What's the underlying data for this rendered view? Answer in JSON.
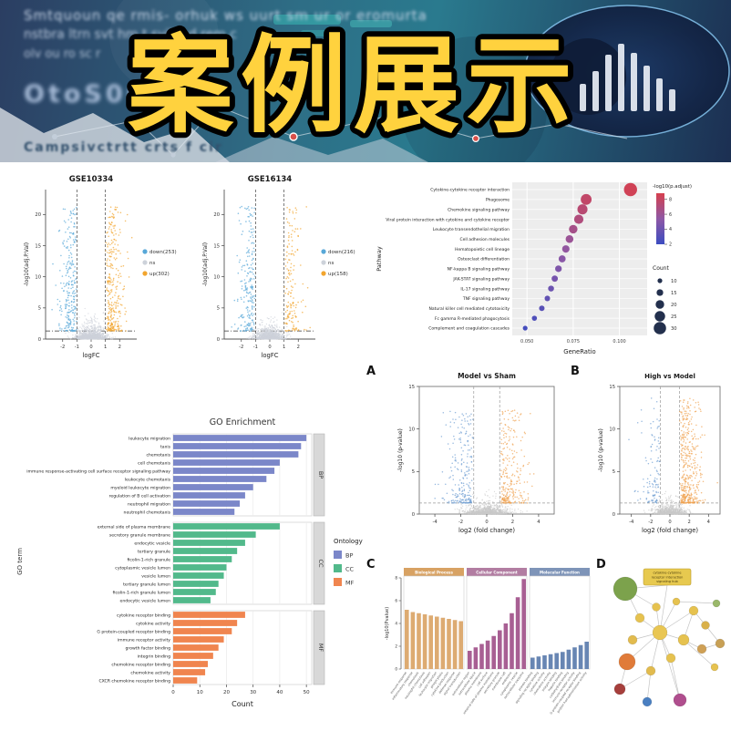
{
  "banner": {
    "title": "案例展示",
    "blur_lines": [
      "Smtquoun qe rmis- orhuk ws uurt sm ur or eromurta",
      "nstbra ltrn svt hm t svil o d rem c",
      "olv ou ro sc r"
    ],
    "big_blur_text": "OtoS06C",
    "bottom_blur_text": "Campsivctrtt crts f cir",
    "colors": {
      "title_fill": "#ffd23e",
      "title_stroke": "#000000"
    }
  },
  "panel_labels": {
    "a": "A",
    "b": "B",
    "c": "C",
    "d": "D"
  },
  "chart_data": [
    {
      "id": "gse10334",
      "type": "scatter",
      "subtype": "volcano",
      "title": "GSE10334",
      "xlabel": "logFC",
      "ylabel": "-log10(adj.P.Val)",
      "xlim": [
        -3.2,
        3.2
      ],
      "ylim": [
        0,
        24
      ],
      "xticks": [
        -2,
        -1,
        0,
        1,
        2
      ],
      "yticks": [
        0,
        5,
        10,
        15,
        20
      ],
      "fc_threshold": 1,
      "p_threshold": 1.3,
      "colors": {
        "down": "#58a8d8",
        "ns": "#cdd2da",
        "up": "#f2a52e"
      },
      "legend": [
        {
          "label": "down(253)",
          "color": "#58a8d8",
          "n": 253
        },
        {
          "label": "ns",
          "color": "#cdd2da"
        },
        {
          "label": "up(302)",
          "color": "#f2a52e",
          "n": 302
        }
      ]
    },
    {
      "id": "gse16134",
      "type": "scatter",
      "subtype": "volcano",
      "title": "GSE16134",
      "xlabel": "logFC",
      "ylabel": "-log10(adj.P.Val)",
      "xlim": [
        -3.2,
        3.2
      ],
      "ylim": [
        0,
        24
      ],
      "xticks": [
        -2,
        -1,
        0,
        1,
        2
      ],
      "yticks": [
        0,
        5,
        10,
        15,
        20
      ],
      "fc_threshold": 1,
      "p_threshold": 1.3,
      "colors": {
        "down": "#58a8d8",
        "ns": "#cdd2da",
        "up": "#f2a52e"
      },
      "legend": [
        {
          "label": "down(216)",
          "color": "#58a8d8",
          "n": 216
        },
        {
          "label": "ns",
          "color": "#cdd2da"
        },
        {
          "label": "up(158)",
          "color": "#f2a52e",
          "n": 158
        }
      ]
    },
    {
      "id": "kegg-dotplot",
      "type": "scatter",
      "subtype": "dotplot",
      "axis_title_y": "Pathway",
      "xlabel": "GeneRatio",
      "xlim": [
        0.042,
        0.115
      ],
      "xticks": [
        "0.050",
        "0.075",
        "0.100"
      ],
      "rows": [
        {
          "pathway": "Cytokine-cytokine receptor interaction",
          "gene_ratio": 0.106,
          "count": 32,
          "neg_log10_p": 8.5
        },
        {
          "pathway": "Phagosome",
          "gene_ratio": 0.082,
          "count": 26,
          "neg_log10_p": 7.8
        },
        {
          "pathway": "Chemokine signaling pathway",
          "gene_ratio": 0.08,
          "count": 24,
          "neg_log10_p": 7.4
        },
        {
          "pathway": "Viral protein interaction with cytokine and cytokine receptor",
          "gene_ratio": 0.078,
          "count": 22,
          "neg_log10_p": 7.0
        },
        {
          "pathway": "Leukocyte transendothelial migration",
          "gene_ratio": 0.075,
          "count": 20,
          "neg_log10_p": 6.5
        },
        {
          "pathway": "Cell adhesion molecules",
          "gene_ratio": 0.073,
          "count": 18,
          "neg_log10_p": 6.0
        },
        {
          "pathway": "Hematopoietic cell lineage",
          "gene_ratio": 0.071,
          "count": 17,
          "neg_log10_p": 5.6
        },
        {
          "pathway": "Osteoclast differentiation",
          "gene_ratio": 0.069,
          "count": 16,
          "neg_log10_p": 5.2
        },
        {
          "pathway": "NF-kappa B signaling pathway",
          "gene_ratio": 0.067,
          "count": 15,
          "neg_log10_p": 4.8
        },
        {
          "pathway": "JAK-STAT signaling pathway",
          "gene_ratio": 0.065,
          "count": 14,
          "neg_log10_p": 4.4
        },
        {
          "pathway": "IL-17 signaling pathway",
          "gene_ratio": 0.063,
          "count": 13,
          "neg_log10_p": 4.0
        },
        {
          "pathway": "TNF signaling pathway",
          "gene_ratio": 0.061,
          "count": 12,
          "neg_log10_p": 3.6
        },
        {
          "pathway": "Natural killer cell mediated cytotoxicity",
          "gene_ratio": 0.058,
          "count": 12,
          "neg_log10_p": 3.2
        },
        {
          "pathway": "Fc gamma R-mediated phagocytosis",
          "gene_ratio": 0.054,
          "count": 11,
          "neg_log10_p": 2.8
        },
        {
          "pathway": "Complement and coagulation cascades",
          "gene_ratio": 0.049,
          "count": 10,
          "neg_log10_p": 2.4
        }
      ],
      "color_legend": {
        "title": "-log10(p.adjust)",
        "ticks": [
          8,
          6,
          4,
          2
        ],
        "min": 2,
        "max": 8.8,
        "low_color": "#3b4cc0",
        "high_color": "#d6404e"
      },
      "size_legend": {
        "title": "Count",
        "values": [
          10,
          15,
          20,
          25,
          30
        ]
      }
    },
    {
      "id": "volcano-model-sham",
      "type": "scatter",
      "subtype": "volcano",
      "panel": "A",
      "title": "Model vs Sham",
      "xlabel": "log2 (fold change)",
      "ylabel": "-log10 (p-value)",
      "xlim": [
        -5.2,
        5.2
      ],
      "ylim": [
        0,
        15
      ],
      "xticks": [
        -4,
        -2,
        0,
        2,
        4
      ],
      "yticks": [
        0,
        5,
        10,
        15
      ],
      "fc_threshold": 1,
      "p_threshold": 1.3,
      "colors": {
        "down": "#6b9bd2",
        "ns": "#c9c9c9",
        "up": "#f0a04b"
      },
      "counts": {
        "down": 230,
        "ns": 1100,
        "up": 260
      }
    },
    {
      "id": "volcano-high-model",
      "type": "scatter",
      "subtype": "volcano",
      "panel": "B",
      "title": "High vs Model",
      "xlabel": "log2 (fold change)",
      "ylabel": "-log10 (p-value)",
      "xlim": [
        -5.2,
        5.2
      ],
      "ylim": [
        0,
        15
      ],
      "xticks": [
        -4,
        -2,
        0,
        2,
        4
      ],
      "yticks": [
        0,
        5,
        10,
        15
      ],
      "fc_threshold": 1,
      "p_threshold": 1.3,
      "colors": {
        "down": "#6b9bd2",
        "ns": "#c9c9c9",
        "up": "#f0a04b"
      },
      "counts": {
        "down": 110,
        "ns": 900,
        "up": 430
      }
    },
    {
      "id": "go-enrichment",
      "type": "bar",
      "orientation": "horizontal",
      "title": "GO Enrichment",
      "xlabel": "Count",
      "axis_title_y": "GO term",
      "xlim": [
        0,
        52
      ],
      "xticks": [
        0,
        10,
        20,
        30,
        40,
        50
      ],
      "legend_title": "Ontology",
      "groups": [
        {
          "name": "BP",
          "color": "#7b87c9",
          "terms": [
            "leukocyte migration",
            "taxis",
            "chemotaxis",
            "cell chemotaxis",
            "immune response-activating cell surface receptor signaling pathway",
            "leukocyte chemotaxis",
            "myeloid leukocyte migration",
            "regulation of B cell activation",
            "neutrophil migration",
            "neutrophil chemotaxis"
          ],
          "values": [
            50,
            48,
            47,
            40,
            38,
            35,
            30,
            27,
            25,
            23
          ]
        },
        {
          "name": "CC",
          "color": "#52b98b",
          "terms": [
            "external side of plasma membrane",
            "secretory granule membrane",
            "endocytic vesicle",
            "tertiary granule",
            "ficolin-1-rich granule",
            "cytoplasmic vesicle lumen",
            "vesicle lumen",
            "tertiary granule lumen",
            "ficolin-1-rich granule lumen",
            "endocytic vesicle lumen"
          ],
          "values": [
            40,
            31,
            27,
            24,
            22,
            20,
            19,
            17,
            16,
            14
          ]
        },
        {
          "name": "MF",
          "color": "#f0854f",
          "terms": [
            "cytokine receptor binding",
            "cytokine activity",
            "G protein-coupled receptor binding",
            "immune receptor activity",
            "growth factor binding",
            "integrin binding",
            "chemokine receptor binding",
            "chemokine activity",
            "CXCR chemokine receptor binding"
          ],
          "values": [
            27,
            24,
            22,
            19,
            17,
            15,
            13,
            12,
            9
          ]
        }
      ]
    },
    {
      "id": "go-triptych",
      "type": "bar",
      "panel": "C",
      "ylabel": "-log10(Pvalue)",
      "ylim": [
        0,
        8
      ],
      "yticks": [
        0,
        2,
        4,
        6,
        8
      ],
      "panels": [
        {
          "name": "Biological Process",
          "header_color": "#d8a263",
          "bar_color": "#ddab72",
          "labels": [
            "immune response",
            "inflammatory response",
            "chemotaxis",
            "neutrophil chemotaxis",
            "cell adhesion",
            "leukocyte migration",
            "phagocytosis",
            "cytokine production",
            "defense response",
            "signal transduction"
          ],
          "values": [
            5.2,
            5.0,
            4.9,
            4.8,
            4.7,
            4.6,
            4.5,
            4.4,
            4.3,
            4.2
          ]
        },
        {
          "name": "Cellular Component",
          "header_color": "#b27da2",
          "bar_color": "#a85f93",
          "labels": [
            "extracellular region",
            "extracellular space",
            "plasma membrane",
            "cell surface",
            "external side of plasma membrane",
            "secretory granule",
            "membrane raft",
            "endosome",
            "cytoplasmic vesicle",
            "extracellular exosome"
          ],
          "values": [
            1.6,
            1.9,
            2.2,
            2.5,
            2.9,
            3.4,
            4.0,
            4.9,
            6.3,
            7.9
          ]
        },
        {
          "name": "Molecular Function",
          "header_color": "#7e94b8",
          "bar_color": "#6886b3",
          "labels": [
            "protein binding",
            "signaling receptor binding",
            "cytokine activity",
            "chemokine activity",
            "integrin binding",
            "heparin binding",
            "carbohydrate binding",
            "immune receptor activity",
            "G protein-coupled receptor binding",
            "protein homodimerization activity"
          ],
          "values": [
            1.0,
            1.1,
            1.2,
            1.3,
            1.4,
            1.5,
            1.7,
            1.9,
            2.1,
            2.4
          ]
        }
      ]
    },
    {
      "id": "ppi-network",
      "type": "network",
      "panel": "D",
      "hub_box": {
        "x": 40,
        "y": 8,
        "w": 52,
        "h": 18,
        "color": "#e7c94f",
        "lines": [
          "cytokine-cytokine",
          "receptor interaction",
          "signaling hub"
        ]
      },
      "nodes": [
        [
          20,
          30,
          13,
          "#7ca24c"
        ],
        [
          54,
          50,
          4.5,
          "#e6c24f"
        ],
        [
          76,
          44,
          4,
          "#e6c24f"
        ],
        [
          95,
          54,
          5,
          "#e6c24f"
        ],
        [
          108,
          70,
          4.5,
          "#d9b049"
        ],
        [
          58,
          78,
          8,
          "#e9c653"
        ],
        [
          36,
          62,
          5,
          "#e6c24f"
        ],
        [
          28,
          86,
          5,
          "#e2bb4e"
        ],
        [
          84,
          86,
          6,
          "#e6c24f"
        ],
        [
          104,
          96,
          5,
          "#cfa055"
        ],
        [
          70,
          106,
          5,
          "#e6c24f"
        ],
        [
          118,
          116,
          4,
          "#e6c24f"
        ],
        [
          48,
          120,
          5,
          "#e2bb4e"
        ],
        [
          22,
          110,
          9,
          "#e07b39"
        ],
        [
          14,
          140,
          6,
          "#a63f3c"
        ],
        [
          44,
          154,
          5,
          "#4a7fc1"
        ],
        [
          80,
          152,
          7,
          "#b04e8e"
        ],
        [
          124,
          90,
          5,
          "#c8a055"
        ],
        [
          120,
          46,
          4,
          "#9ab86a"
        ]
      ],
      "edges": [
        [
          0,
          6
        ],
        [
          0,
          1
        ],
        [
          1,
          5
        ],
        [
          2,
          5
        ],
        [
          3,
          5
        ],
        [
          6,
          5
        ],
        [
          7,
          5
        ],
        [
          8,
          5
        ],
        [
          10,
          5
        ],
        [
          12,
          5
        ],
        [
          13,
          5
        ],
        [
          3,
          8
        ],
        [
          8,
          9
        ],
        [
          8,
          11
        ],
        [
          9,
          17
        ],
        [
          12,
          15
        ],
        [
          12,
          14
        ],
        [
          13,
          14
        ],
        [
          10,
          16
        ],
        [
          5,
          16
        ],
        [
          2,
          18
        ],
        [
          4,
          17
        ],
        [
          3,
          4
        ]
      ]
    }
  ]
}
